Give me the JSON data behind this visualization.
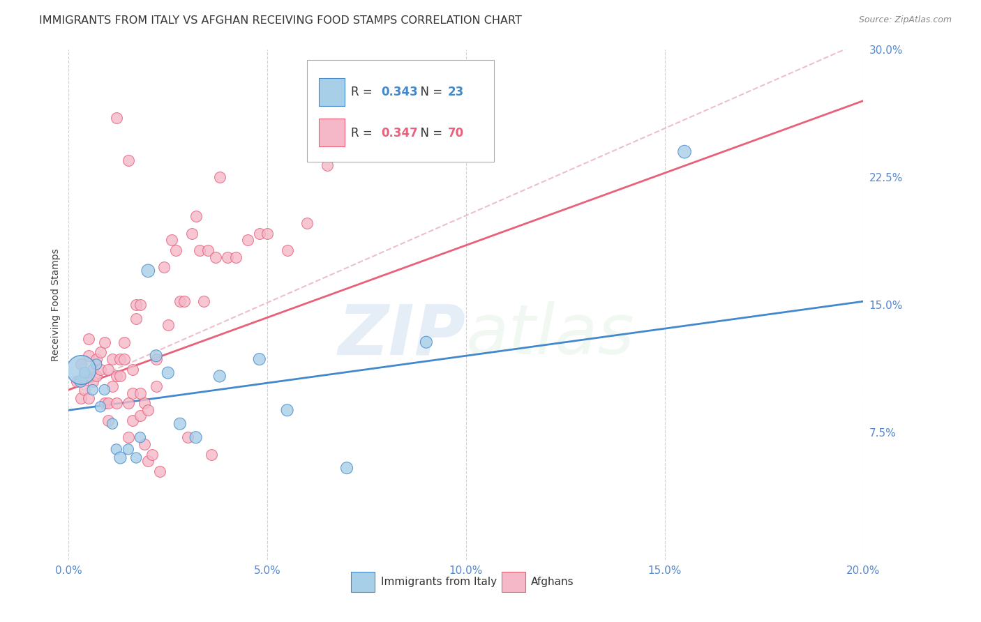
{
  "title": "IMMIGRANTS FROM ITALY VS AFGHAN RECEIVING FOOD STAMPS CORRELATION CHART",
  "source": "Source: ZipAtlas.com",
  "ylabel": "Receiving Food Stamps",
  "xlim": [
    0.0,
    0.2
  ],
  "ylim": [
    0.0,
    0.3
  ],
  "xticks": [
    0.0,
    0.05,
    0.1,
    0.15,
    0.2
  ],
  "yticks": [
    0.0,
    0.075,
    0.15,
    0.225,
    0.3
  ],
  "xtick_labels": [
    "0.0%",
    "5.0%",
    "10.0%",
    "15.0%",
    "20.0%"
  ],
  "ytick_labels": [
    "",
    "7.5%",
    "15.0%",
    "22.5%",
    "30.0%"
  ],
  "italy_R": 0.343,
  "italy_N": 23,
  "afghan_R": 0.347,
  "afghan_N": 70,
  "italy_color": "#a8cfe8",
  "afghan_color": "#f4b8c8",
  "italy_line_color": "#4488cc",
  "afghan_line_color": "#e8607a",
  "dashed_line_color": "#e8b0bc",
  "italy_scatter_x": [
    0.003,
    0.004,
    0.006,
    0.007,
    0.008,
    0.009,
    0.011,
    0.012,
    0.013,
    0.015,
    0.017,
    0.018,
    0.02,
    0.022,
    0.025,
    0.028,
    0.032,
    0.038,
    0.048,
    0.055,
    0.07,
    0.09,
    0.155
  ],
  "italy_scatter_y": [
    0.105,
    0.11,
    0.1,
    0.115,
    0.09,
    0.1,
    0.08,
    0.065,
    0.06,
    0.065,
    0.06,
    0.072,
    0.17,
    0.12,
    0.11,
    0.08,
    0.072,
    0.108,
    0.118,
    0.088,
    0.054,
    0.128,
    0.24
  ],
  "italy_scatter_size": [
    150,
    120,
    120,
    120,
    120,
    120,
    120,
    120,
    150,
    120,
    120,
    120,
    180,
    150,
    150,
    150,
    150,
    150,
    150,
    150,
    150,
    150,
    180
  ],
  "italy_big_dot_x": [
    0.003
  ],
  "italy_big_dot_y": [
    0.112
  ],
  "italy_big_dot_size": [
    900
  ],
  "afghan_scatter_x": [
    0.002,
    0.003,
    0.003,
    0.004,
    0.004,
    0.005,
    0.005,
    0.005,
    0.006,
    0.006,
    0.007,
    0.007,
    0.008,
    0.008,
    0.009,
    0.009,
    0.01,
    0.01,
    0.01,
    0.011,
    0.011,
    0.012,
    0.012,
    0.012,
    0.013,
    0.013,
    0.014,
    0.014,
    0.015,
    0.015,
    0.015,
    0.016,
    0.016,
    0.016,
    0.017,
    0.017,
    0.018,
    0.018,
    0.018,
    0.019,
    0.019,
    0.02,
    0.02,
    0.021,
    0.022,
    0.022,
    0.023,
    0.024,
    0.025,
    0.026,
    0.027,
    0.028,
    0.029,
    0.03,
    0.031,
    0.032,
    0.033,
    0.034,
    0.035,
    0.036,
    0.037,
    0.038,
    0.04,
    0.042,
    0.045,
    0.048,
    0.05,
    0.055,
    0.06,
    0.065
  ],
  "afghan_scatter_y": [
    0.105,
    0.115,
    0.095,
    0.1,
    0.11,
    0.12,
    0.13,
    0.095,
    0.112,
    0.105,
    0.108,
    0.118,
    0.122,
    0.112,
    0.128,
    0.092,
    0.112,
    0.092,
    0.082,
    0.118,
    0.102,
    0.108,
    0.092,
    0.26,
    0.118,
    0.108,
    0.128,
    0.118,
    0.092,
    0.072,
    0.235,
    0.112,
    0.098,
    0.082,
    0.15,
    0.142,
    0.15,
    0.098,
    0.085,
    0.092,
    0.068,
    0.088,
    0.058,
    0.062,
    0.118,
    0.102,
    0.052,
    0.172,
    0.138,
    0.188,
    0.182,
    0.152,
    0.152,
    0.072,
    0.192,
    0.202,
    0.182,
    0.152,
    0.182,
    0.062,
    0.178,
    0.225,
    0.178,
    0.178,
    0.188,
    0.192,
    0.192,
    0.182,
    0.198,
    0.232
  ],
  "italy_line_x": [
    0.0,
    0.2
  ],
  "italy_line_y": [
    0.088,
    0.152
  ],
  "afghan_line_x": [
    0.0,
    0.2
  ],
  "afghan_line_y": [
    0.1,
    0.27
  ],
  "dashed_line_x": [
    0.0,
    0.2
  ],
  "dashed_line_y": [
    0.1,
    0.305
  ],
  "watermark_zip": "ZIP",
  "watermark_atlas": "atlas",
  "background_color": "#ffffff",
  "grid_color": "#cccccc",
  "tick_color": "#5588cc",
  "title_fontsize": 11.5,
  "axis_label_fontsize": 10,
  "tick_fontsize": 11,
  "legend_fontsize": 12
}
